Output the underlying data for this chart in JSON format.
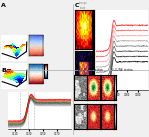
{
  "bg_color": "#f0f0f0",
  "panel_A_label": "A",
  "panel_B_label": "B",
  "panel_C_label": "C",
  "xanes_colors_B": [
    "#bbbbbb",
    "#999999",
    "#777777",
    "#555555",
    "#333333",
    "#00aa00",
    "#ff4444",
    "#ff0000",
    "#ee0000"
  ],
  "xanes_colors_C": [
    "#111111",
    "#333333",
    "#555555",
    "#777777",
    "#aaaaaa",
    "#ffaaaa",
    "#ff6666",
    "#ff2222"
  ],
  "cmap_3d": "jet",
  "cmap_stripe": "coolwarm",
  "cmap_charge": "hot",
  "cmap_dark": "inferno",
  "cmap_elem": "RdYlGn",
  "divider_color": "#999999",
  "label_fontsize": 4.5
}
